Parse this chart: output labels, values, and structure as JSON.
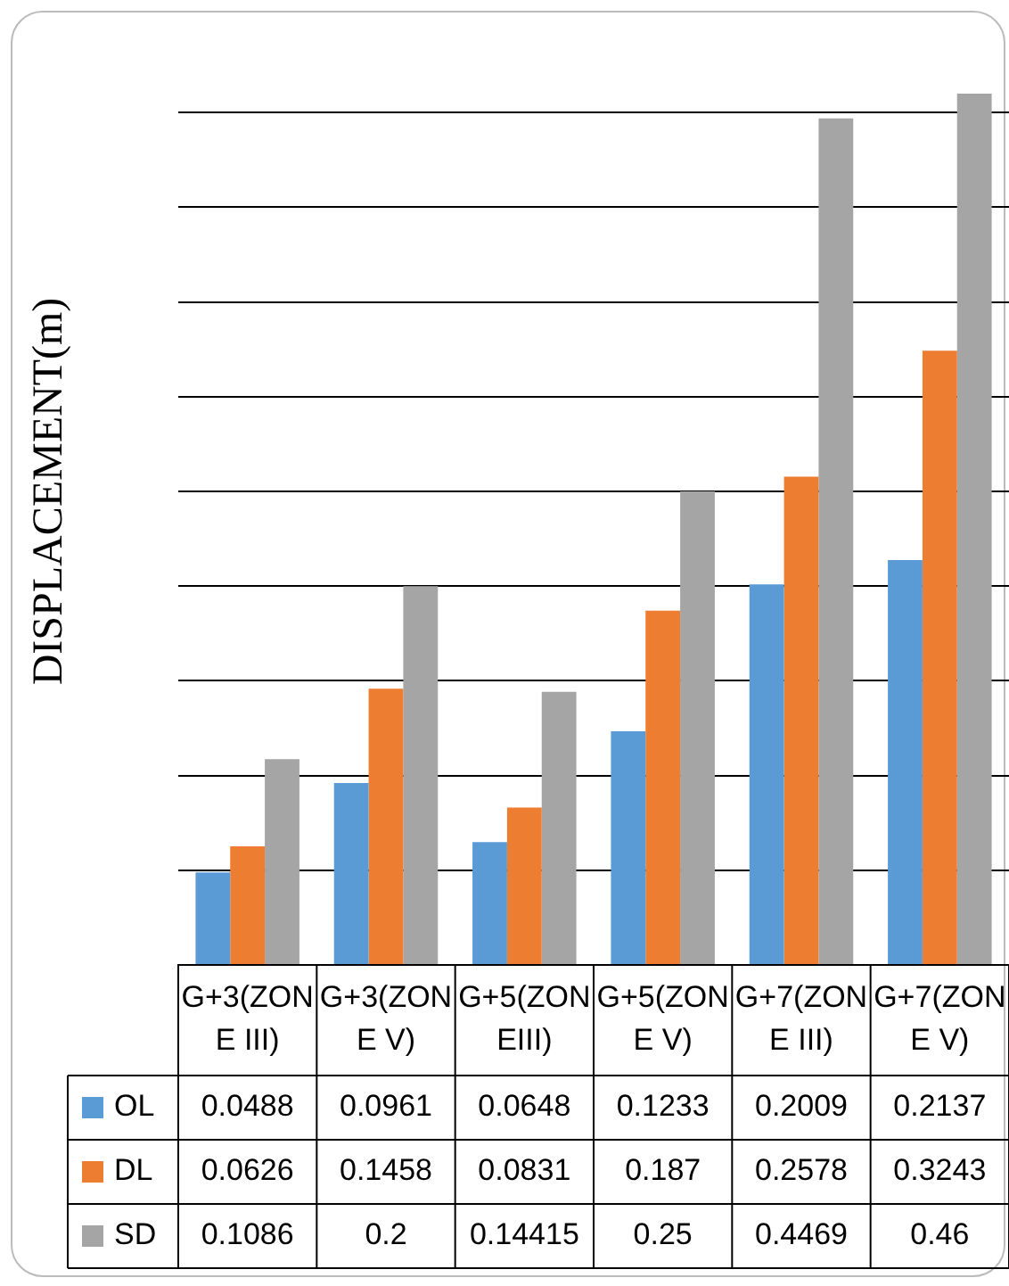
{
  "chart_data": {
    "type": "bar",
    "ylabel": "DISPLACEMENT(m)",
    "categories": [
      "G+3(ZONE III)",
      "G+3(ZONE V)",
      "G+5(ZONEIII)",
      "G+5(ZONE V)",
      "G+7(ZONE III)",
      "G+7(ZONE V)"
    ],
    "series": [
      {
        "name": "OL",
        "color": "#5b9bd5",
        "values": [
          0.0488,
          0.0961,
          0.0648,
          0.1233,
          0.2009,
          0.2137
        ]
      },
      {
        "name": "DL",
        "color": "#ed7d31",
        "values": [
          0.0626,
          0.1458,
          0.0831,
          0.187,
          0.2578,
          0.3243
        ]
      },
      {
        "name": "SD",
        "color": "#a5a5a5",
        "values": [
          0.1086,
          0.2,
          0.14415,
          0.25,
          0.4469,
          0.46
        ]
      }
    ],
    "data_labels": true,
    "yticks": [
      {
        "value": 0,
        "label": null
      },
      {
        "value": 0.05,
        "label": null
      },
      {
        "value": 0.1,
        "label": null
      },
      {
        "value": 0.15,
        "label": null
      },
      {
        "value": 0.2,
        "label": null
      },
      {
        "value": 0.25,
        "label": null
      },
      {
        "value": 0.3,
        "label": null
      },
      {
        "value": 0.35,
        "label": null
      },
      {
        "value": 0.4,
        "label": null
      },
      {
        "value": 0.45,
        "label": null
      }
    ],
    "grid": "y",
    "legend": "bottom",
    "tick_labels": "x"
  }
}
